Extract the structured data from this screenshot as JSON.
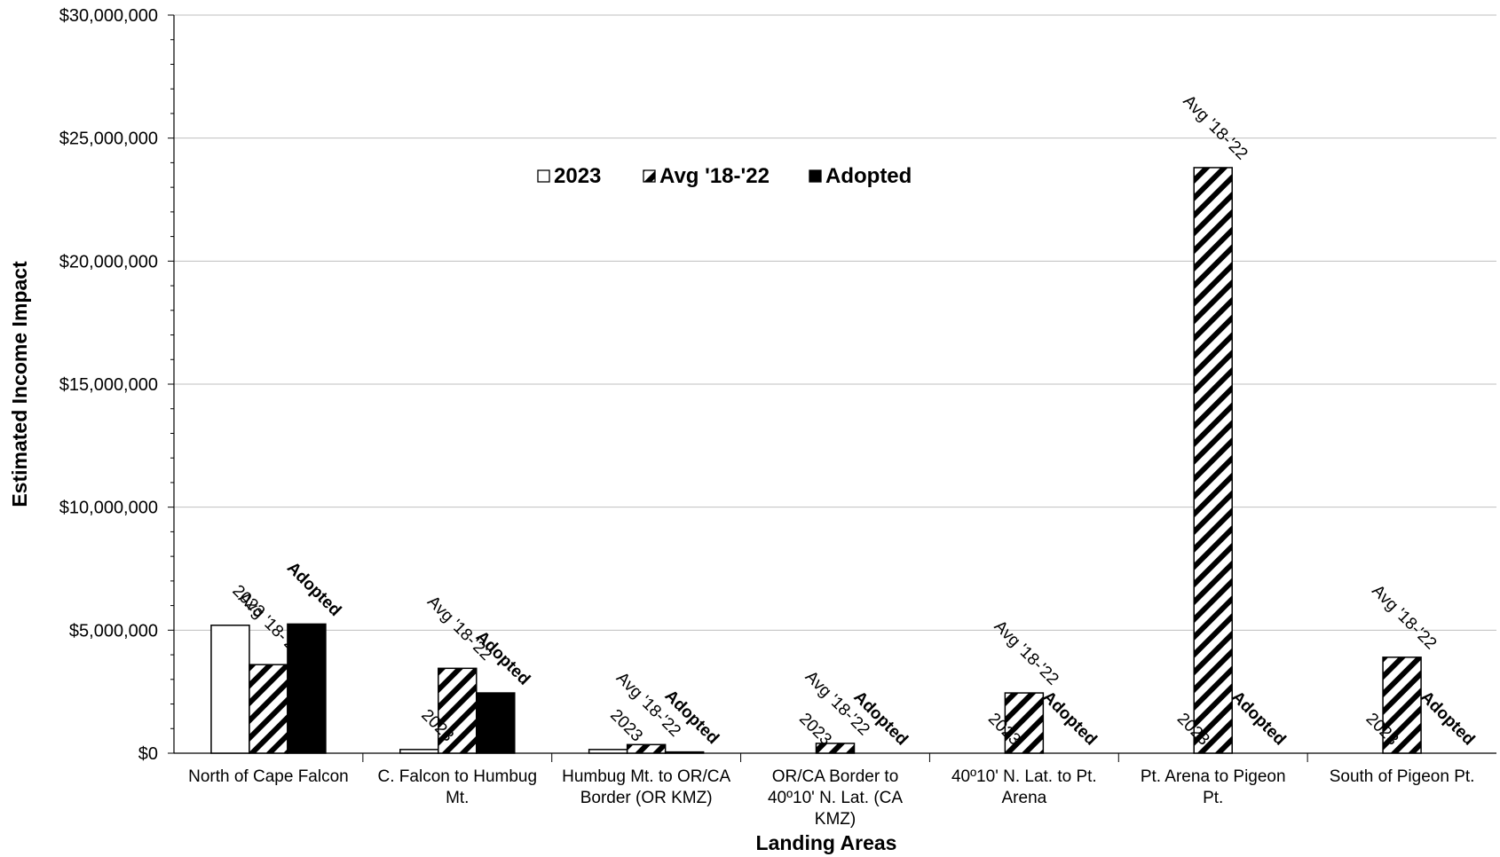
{
  "chart_data": {
    "type": "bar",
    "title": "",
    "xlabel": "Landing Areas",
    "ylabel": "Estimated Income Impact",
    "ylim": [
      0,
      30000000
    ],
    "yticks": [
      0,
      5000000,
      10000000,
      15000000,
      20000000,
      25000000,
      30000000
    ],
    "ytick_labels": [
      "$0",
      "$5,000,000",
      "$10,000,000",
      "$15,000,000",
      "$20,000,000",
      "$25,000,000",
      "$30,000,000"
    ],
    "grid": true,
    "legend_position": "top-center",
    "categories": [
      [
        "North of Cape Falcon"
      ],
      [
        "C. Falcon to Humbug",
        "Mt."
      ],
      [
        "Humbug Mt. to OR/CA",
        "Border (OR KMZ)"
      ],
      [
        "OR/CA Border to",
        "40º10' N. Lat. (CA",
        "KMZ)"
      ],
      [
        "40º10' N. Lat. to Pt.",
        "Arena"
      ],
      [
        "Pt. Arena to Pigeon",
        "Pt."
      ],
      [
        "South of Pigeon Pt."
      ]
    ],
    "series": [
      {
        "name": "2023",
        "fill": "white",
        "values": [
          5200000,
          150000,
          150000,
          0,
          0,
          0,
          0
        ]
      },
      {
        "name": "Avg '18-'22",
        "fill": "hatch",
        "values": [
          3600000,
          3450000,
          350000,
          400000,
          2450000,
          23800000,
          3900000
        ]
      },
      {
        "name": "Adopted",
        "fill": "black",
        "values": [
          5250000,
          2450000,
          50000,
          0,
          0,
          0,
          0
        ]
      }
    ],
    "data_labels": [
      "2023",
      "Avg '18-'22",
      "Adopted"
    ]
  },
  "colors": {
    "bar_outline": "#000000",
    "grid": "#bfbfbf",
    "background": "#ffffff"
  }
}
